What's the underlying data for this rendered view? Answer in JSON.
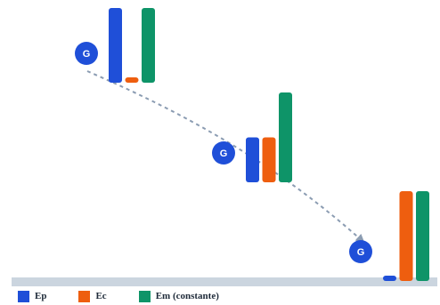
{
  "colors": {
    "ep": "#1f4fd8",
    "ec": "#ee5e0f",
    "em": "#0e9468",
    "ground": "#cbd5df",
    "path": "#8b9cb2",
    "marker_text": "#ffffff"
  },
  "marker_label": "G",
  "legend": [
    {
      "key": "ep",
      "label": "Ep"
    },
    {
      "key": "ec",
      "label": "Ec"
    },
    {
      "key": "em",
      "label": "Em (constante)"
    }
  ],
  "stations": [
    {
      "position": "top",
      "ep": 100,
      "ec": 0,
      "em": 100
    },
    {
      "position": "middle",
      "ep": 50,
      "ec": 50,
      "em": 100
    },
    {
      "position": "bottom",
      "ep": 0,
      "ec": 100,
      "em": 100
    }
  ]
}
